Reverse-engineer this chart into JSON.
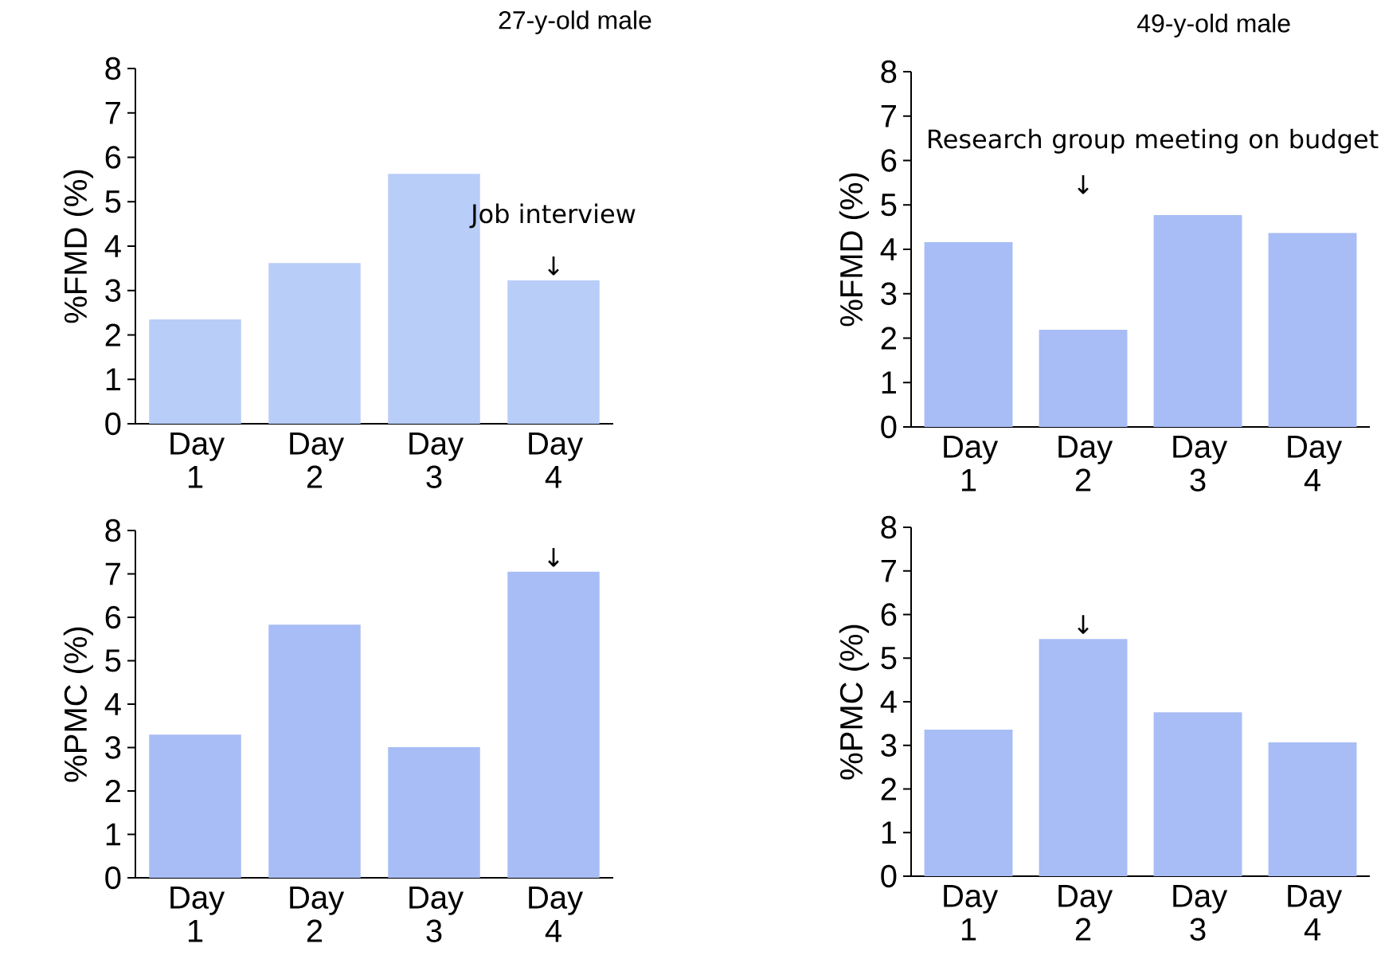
{
  "chart_data": [
    {
      "type": "bar",
      "title": "27-y-old male",
      "ylabel": "%FMD (%)",
      "categories": [
        "Day 1",
        "Day 2",
        "Day 3",
        "Day 4"
      ],
      "values": [
        2.35,
        3.62,
        5.63,
        3.23
      ],
      "color": "#b8cdf8",
      "ylim": [
        0,
        8
      ],
      "yticks": [
        0,
        1,
        2,
        3,
        4,
        5,
        6,
        7,
        8
      ],
      "annotations": [
        {
          "text": "↓",
          "x": "Day 4",
          "y": 3.23
        },
        "Job interview"
      ]
    },
    {
      "type": "bar",
      "title": "49-y-old male",
      "ylabel": "%FMD (%)",
      "categories": [
        "Day 1",
        "Day 2",
        "Day 3",
        "Day 4"
      ],
      "values": [
        4.16,
        2.19,
        4.77,
        4.37
      ],
      "color": "#a8bdf5",
      "ylim": [
        0,
        8
      ],
      "yticks": [
        0,
        1,
        2,
        3,
        4,
        5,
        6,
        7,
        8
      ],
      "annotations": [
        "↓",
        "Research group meeting on budget"
      ]
    },
    {
      "type": "bar",
      "ylabel": "%PMC (%)",
      "categories": [
        "Day 1",
        "Day 2",
        "Day 3",
        "Day 4"
      ],
      "values": [
        3.3,
        5.83,
        3.01,
        7.05
      ],
      "color": "#a8bdf5",
      "ylim": [
        0,
        8
      ],
      "yticks": [
        0,
        1,
        2,
        3,
        4,
        5,
        6,
        7,
        8
      ],
      "annotations": [
        {
          "text": "↓",
          "x": "Day 4",
          "y": 7.05
        }
      ]
    },
    {
      "type": "bar",
      "ylabel": "%PMC (%)",
      "categories": [
        "Day 1",
        "Day 2",
        "Day 3",
        "Day 4"
      ],
      "values": [
        3.36,
        5.44,
        3.76,
        3.07
      ],
      "color": "#a8bdf5",
      "ylim": [
        0,
        8
      ],
      "yticks": [
        0,
        1,
        2,
        3,
        4,
        5,
        6,
        7,
        8
      ],
      "annotations": [
        {
          "text": "↓",
          "x": "Day 2",
          "y": 5.44
        }
      ]
    }
  ]
}
